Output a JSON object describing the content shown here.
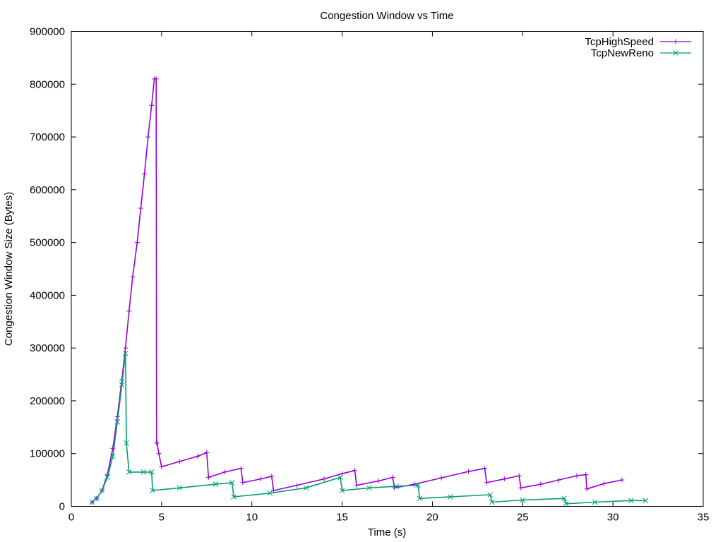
{
  "chart_data": {
    "type": "line",
    "title": "Congestion Window vs Time",
    "xlabel": "Time (s)",
    "ylabel": "Congestion Window Size (Bytes)",
    "xlim": [
      0,
      35
    ],
    "ylim": [
      0,
      900000
    ],
    "xticks": [
      0,
      5,
      10,
      15,
      20,
      25,
      30,
      35
    ],
    "yticks": [
      0,
      100000,
      200000,
      300000,
      400000,
      500000,
      600000,
      700000,
      800000,
      900000
    ],
    "grid": false,
    "legend": "top-right",
    "series": [
      {
        "name": "TcpHighSpeed",
        "color": "#9400D3",
        "marker": "plus",
        "x": [
          1.15,
          1.4,
          1.7,
          2.0,
          2.3,
          2.55,
          2.8,
          3.0,
          3.2,
          3.4,
          3.65,
          3.85,
          4.05,
          4.25,
          4.45,
          4.6,
          4.7,
          4.72,
          4.75,
          4.85,
          5.0,
          6.0,
          7.0,
          7.5,
          7.6,
          8.5,
          9.4,
          9.5,
          10.5,
          11.1,
          11.2,
          12.5,
          14.0,
          15.0,
          15.7,
          15.8,
          17.0,
          17.8,
          17.9,
          19.0,
          20.5,
          22.0,
          22.9,
          23.0,
          24.0,
          24.8,
          24.9,
          26.0,
          27.0,
          28.0,
          28.5,
          28.55,
          29.5,
          30.5
        ],
        "y": [
          8000,
          15000,
          30000,
          60000,
          110000,
          170000,
          240000,
          300000,
          370000,
          435000,
          500000,
          565000,
          630000,
          700000,
          760000,
          810000,
          810000,
          120000,
          120000,
          100000,
          75000,
          85000,
          95000,
          102000,
          55000,
          65000,
          72000,
          45000,
          52000,
          57000,
          30000,
          40000,
          52000,
          62000,
          68000,
          40000,
          48000,
          55000,
          35000,
          42000,
          54000,
          66000,
          72000,
          45000,
          52000,
          58000,
          35000,
          42000,
          50000,
          58000,
          60000,
          33000,
          43000,
          50000
        ]
      },
      {
        "name": "TcpNewReno",
        "color": "#009E73",
        "marker": "x",
        "x": [
          1.15,
          1.4,
          1.7,
          2.0,
          2.3,
          2.55,
          2.8,
          3.0,
          3.05,
          3.2,
          4.0,
          4.45,
          4.5,
          6.0,
          8.0,
          8.9,
          9.0,
          11.0,
          13.0,
          14.9,
          15.0,
          16.5,
          18.0,
          19.2,
          19.3,
          21.0,
          23.2,
          23.3,
          25.0,
          27.3,
          27.4,
          29.0,
          31.0,
          31.8
        ],
        "y": [
          8000,
          15000,
          30000,
          55000,
          95000,
          160000,
          230000,
          290000,
          120000,
          65000,
          65000,
          65000,
          30000,
          35000,
          42000,
          45000,
          18000,
          25000,
          35000,
          55000,
          30000,
          35000,
          38000,
          40000,
          15000,
          18000,
          22000,
          8000,
          12000,
          15000,
          5000,
          8000,
          11000,
          11000
        ]
      }
    ]
  }
}
